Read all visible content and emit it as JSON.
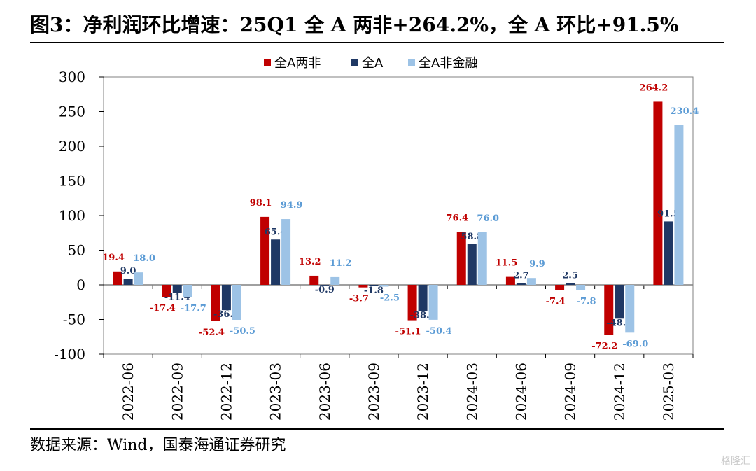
{
  "title": "图3：净利润环比增速：25Q1 全 A 两非+264.2%，全 A 环比+91.5%",
  "source": "数据来源：Wind，国泰海通证券研究",
  "watermark": "格隆汇",
  "colors": {
    "series_a": "#c00000",
    "series_b": "#1f3864",
    "series_c": "#9dc3e6",
    "label_c": "#5b9bd5",
    "axis": "#000000",
    "grid": "#808080"
  },
  "chart_data": {
    "type": "bar",
    "categories": [
      "2022-06",
      "2022-09",
      "2022-12",
      "2023-03",
      "2023-06",
      "2023-09",
      "2023-12",
      "2024-03",
      "2024-06",
      "2024-09",
      "2024-12",
      "2025-03"
    ],
    "series": [
      {
        "name": "全A两非",
        "values": [
          19.4,
          -17.4,
          -52.4,
          98.1,
          13.2,
          -3.7,
          -51.1,
          76.4,
          11.5,
          -7.4,
          -72.2,
          264.2
        ]
      },
      {
        "name": "全A",
        "values": [
          9.0,
          -11.4,
          -36.5,
          65.4,
          -0.9,
          -1.8,
          -38.1,
          58.8,
          2.7,
          2.5,
          -48.8,
          91.5
        ]
      },
      {
        "name": "全A非金融",
        "values": [
          18.0,
          -17.7,
          -50.5,
          94.9,
          11.2,
          -2.5,
          -50.4,
          76.0,
          9.9,
          -7.8,
          -69.0,
          230.4
        ]
      }
    ],
    "ylim": [
      -100,
      300
    ],
    "yticks": [
      "300",
      "250",
      "200",
      "150",
      "100",
      "50",
      "0",
      "-50",
      "-100"
    ],
    "grid": true,
    "legend_position": "top-center",
    "xlabel": "",
    "ylabel": ""
  }
}
